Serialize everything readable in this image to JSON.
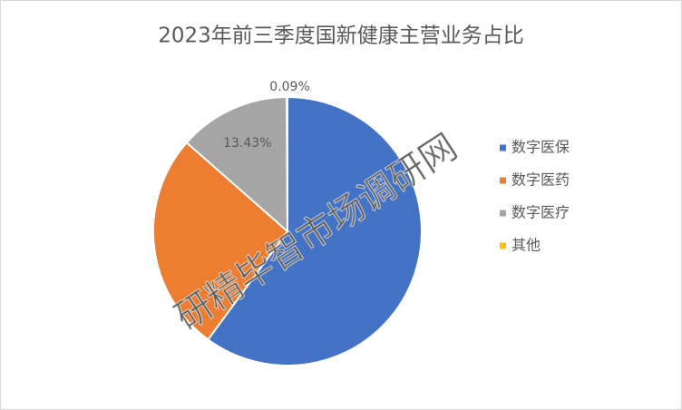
{
  "chart_data": {
    "type": "pie",
    "title": "2023年前三季度国新健康主营业务占比",
    "categories": [
      "数字医保",
      "数字医药",
      "数字医疗",
      "其他"
    ],
    "values": [
      60.08,
      26.4,
      13.43,
      0.09
    ],
    "value_labels": [
      null,
      null,
      "13.43%",
      "0.09%"
    ],
    "colors": [
      "#4472c4",
      "#ed7d31",
      "#a5a5a5",
      "#ffc000"
    ],
    "legend": "right",
    "watermark": "研精毕智市场调研网"
  }
}
